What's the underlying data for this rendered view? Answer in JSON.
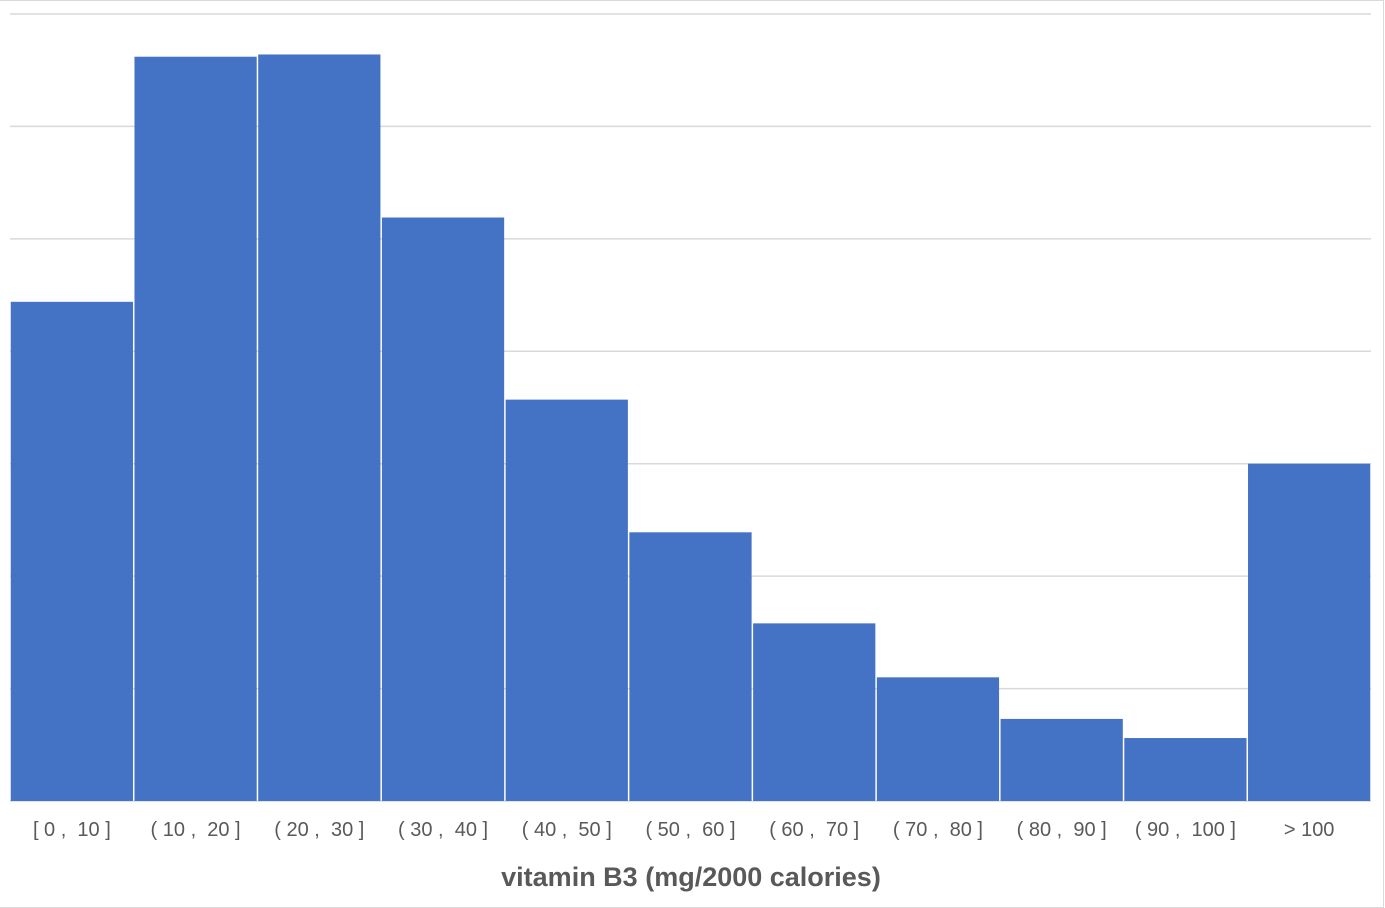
{
  "chart_data": {
    "type": "bar",
    "title": "",
    "xlabel": "vitamin B3 (mg/2000 calories)",
    "ylabel": "",
    "categories": [
      "[ 0 ,  10 ]",
      "( 10 ,  20 ]",
      "( 20 ,  30 ]",
      "( 30 ,  40 ]",
      "( 40 ,  50 ]",
      "( 50 ,  60 ]",
      "( 60 ,  70 ]",
      "( 70 ,  80 ]",
      "( 80 ,  90 ]",
      "( 90 ,  100 ]",
      "> 100"
    ],
    "values": [
      4.44,
      6.62,
      6.64,
      5.19,
      3.57,
      2.39,
      1.58,
      1.1,
      0.73,
      0.56,
      3.0
    ],
    "value_units": "relative (gridline units; y-axis unlabeled)",
    "ylim": [
      0,
      7
    ],
    "grid": true,
    "legend": "none",
    "bar_color": "#4472C4",
    "grid_color": "#d9d9d9"
  }
}
